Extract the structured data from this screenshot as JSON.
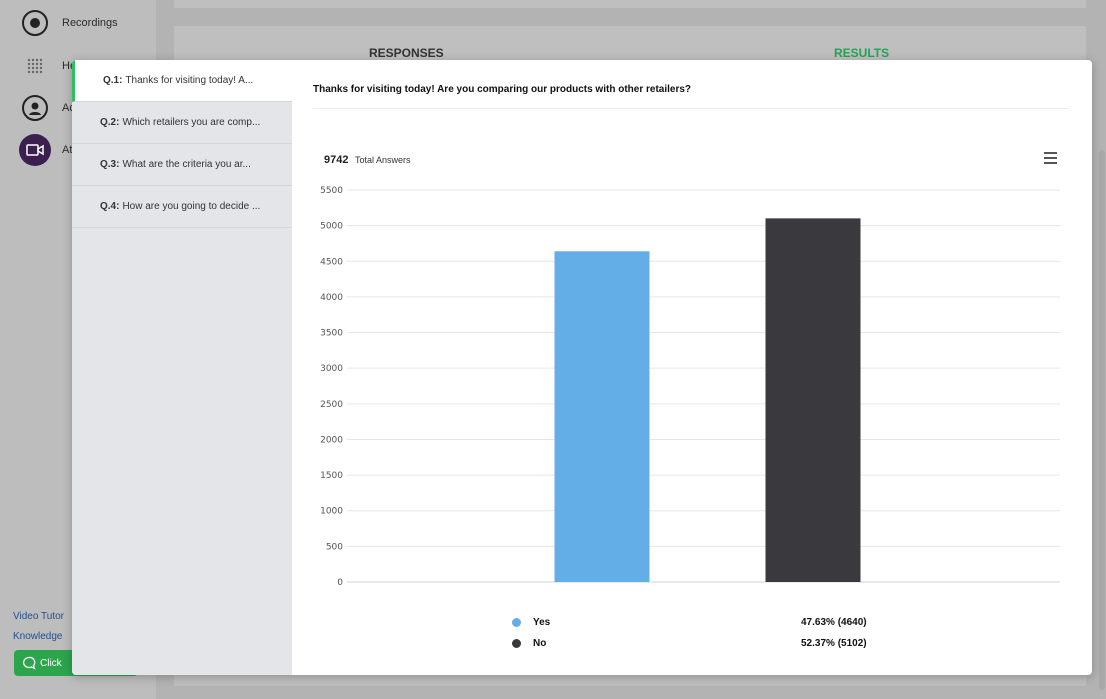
{
  "sidebar": {
    "items": [
      {
        "label": "Recordings",
        "icon": "record-icon"
      },
      {
        "label": "He",
        "icon": "dots-icon"
      },
      {
        "label": "Ac",
        "icon": "account-icon"
      },
      {
        "label": "At",
        "icon": "camera-icon"
      }
    ],
    "links": [
      "Video Tutor",
      "Knowledge"
    ],
    "chat_button": "Click"
  },
  "tabs": {
    "responses": "RESPONSES",
    "results": "RESULTS",
    "results_color": "#2fbf5f"
  },
  "questions": [
    {
      "num": "Q.1:",
      "text": "Thanks for visiting today! A..."
    },
    {
      "num": "Q.2:",
      "text": "Which retailers you are comp..."
    },
    {
      "num": "Q.3:",
      "text": "What are the criteria you ar..."
    },
    {
      "num": "Q.4:",
      "text": "How are you going to decide ..."
    }
  ],
  "detail": {
    "title": "Thanks for visiting today! Are you comparing our products with other retailers?",
    "total_value": "9742",
    "total_label": "Total Answers"
  },
  "chart_data": {
    "type": "bar",
    "categories": [
      "Yes",
      "No"
    ],
    "values": [
      4640,
      5102
    ],
    "colors": [
      "#64aee8",
      "#3a3a3e"
    ],
    "ylim": [
      0,
      5500
    ],
    "yticks": [
      0,
      500,
      1000,
      1500,
      2000,
      2500,
      3000,
      3500,
      4000,
      4500,
      5000,
      5500
    ],
    "grid": true
  },
  "legend": [
    {
      "label": "Yes",
      "value": "47.63% (4640)",
      "color": "#64aee8"
    },
    {
      "label": "No",
      "value": "52.37% (5102)",
      "color": "#3a3a3e"
    }
  ]
}
